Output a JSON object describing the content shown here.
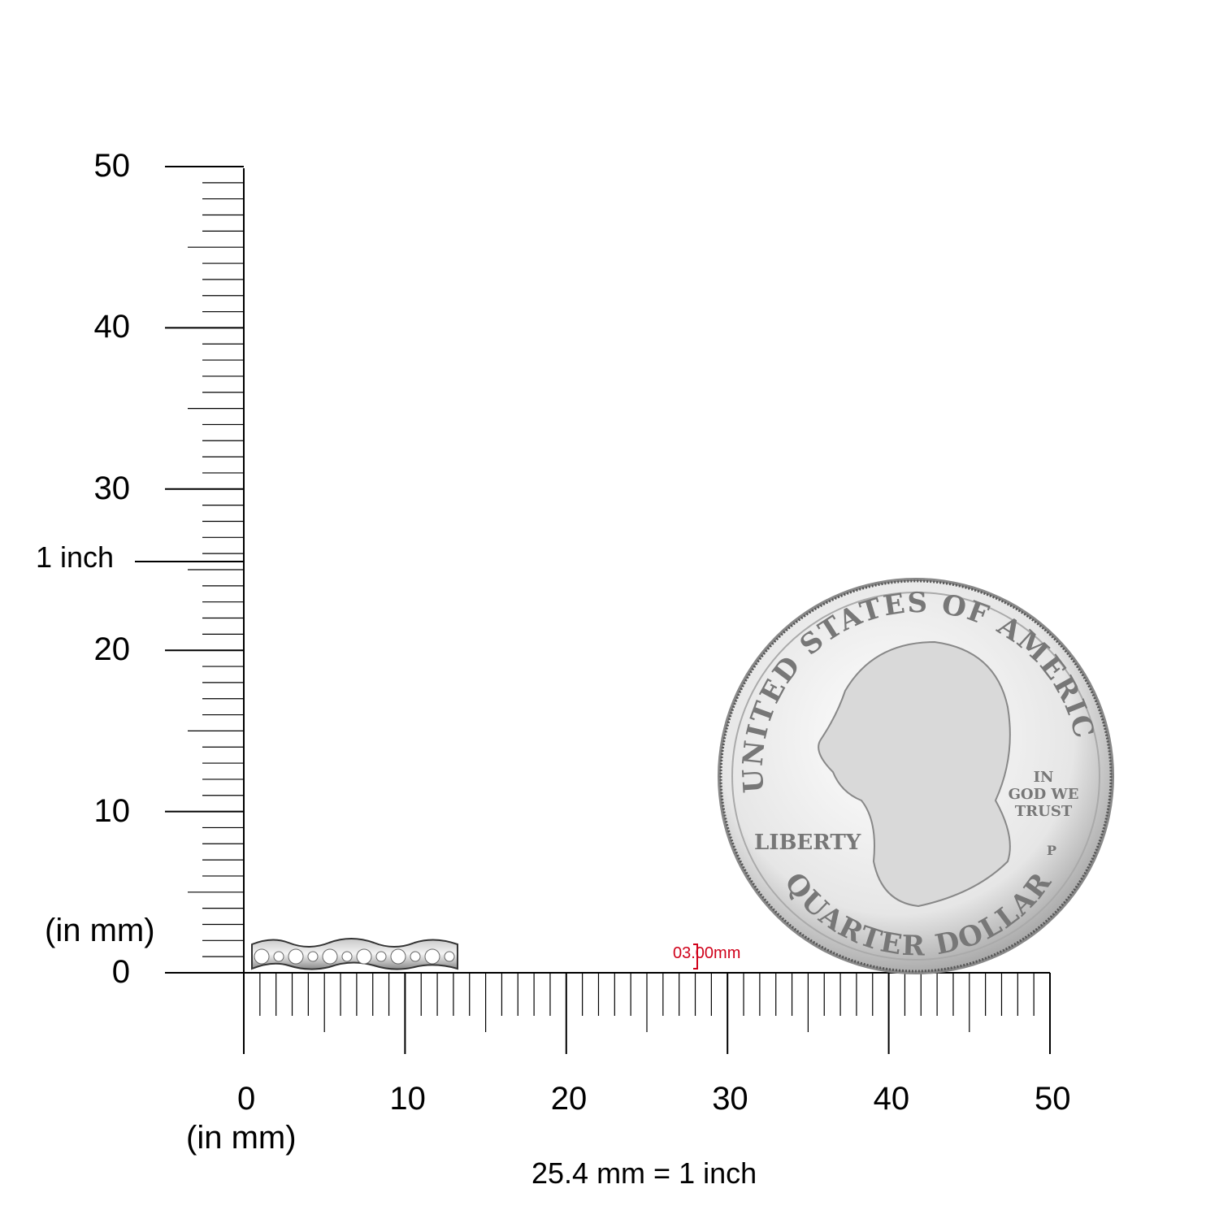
{
  "vertical_ruler": {
    "tick_labels": [
      "0",
      "10",
      "20",
      "30",
      "40",
      "50"
    ],
    "unit_label": "(in mm)",
    "inch_marker_label": "1 inch",
    "range_mm": [
      0,
      50
    ]
  },
  "horizontal_ruler": {
    "tick_labels": [
      "0",
      "10",
      "20",
      "30",
      "40",
      "50"
    ],
    "unit_label": "(in mm)",
    "range_mm": [
      0,
      50
    ]
  },
  "conversion_note": "25.4 mm = 1 inch",
  "ring": {
    "width_label": "03.00mm",
    "label_color": "#d0021b"
  },
  "coin": {
    "top_text": "UNITED STATES OF AMERICA",
    "bottom_text": "QUARTER DOLLAR",
    "left_text": "LIBERTY",
    "motto": [
      "IN",
      "GOD WE",
      "TRUST"
    ],
    "mint_mark": "P"
  }
}
